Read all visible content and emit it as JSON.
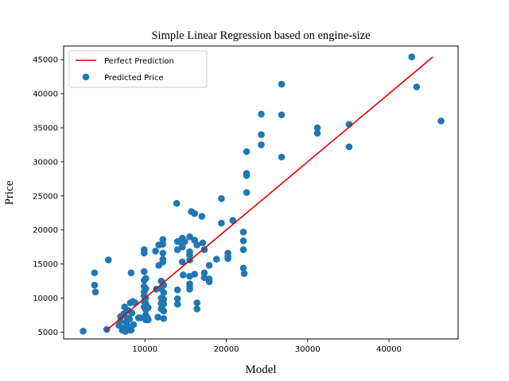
{
  "chart_data": {
    "type": "scatter",
    "title": "Simple Linear Regression based on engine-size",
    "xlabel": "Model",
    "ylabel": "Price",
    "xlim": [
      0,
      48500
    ],
    "ylim": [
      4000,
      47000
    ],
    "xticks": [
      10000,
      20000,
      30000,
      40000
    ],
    "yticks": [
      5000,
      10000,
      15000,
      20000,
      25000,
      30000,
      35000,
      40000,
      45000
    ],
    "grid": false,
    "legend_position": "top-left",
    "series": [
      {
        "name": "Perfect Prediction",
        "kind": "line",
        "color": "#e00000",
        "x": [
          5200,
          45400
        ],
        "y": [
          5200,
          45400
        ]
      },
      {
        "name": "Predicted Price",
        "kind": "scatter",
        "color": "#1f77b4",
        "points": [
          [
            2400,
            5150
          ],
          [
            3800,
            13700
          ],
          [
            3800,
            11900
          ],
          [
            3900,
            10900
          ],
          [
            5300,
            5400
          ],
          [
            5500,
            15600
          ],
          [
            6800,
            6000
          ],
          [
            7000,
            6600
          ],
          [
            7000,
            7300
          ],
          [
            7200,
            5300
          ],
          [
            7300,
            5600
          ],
          [
            7400,
            7700
          ],
          [
            7500,
            8700
          ],
          [
            7600,
            5100
          ],
          [
            7700,
            6400
          ],
          [
            7800,
            7100
          ],
          [
            7900,
            8200
          ],
          [
            8000,
            5800
          ],
          [
            8100,
            6900
          ],
          [
            8200,
            9300
          ],
          [
            8200,
            5300
          ],
          [
            8300,
            5300
          ],
          [
            8300,
            13700
          ],
          [
            8400,
            7800
          ],
          [
            8500,
            9500
          ],
          [
            8600,
            6100
          ],
          [
            8800,
            9300
          ],
          [
            9200,
            7100
          ],
          [
            9400,
            7100
          ],
          [
            9900,
            16600
          ],
          [
            9900,
            17100
          ],
          [
            9900,
            13900
          ],
          [
            9900,
            12600
          ],
          [
            9900,
            11700
          ],
          [
            9900,
            10900
          ],
          [
            9900,
            10300
          ],
          [
            9900,
            9500
          ],
          [
            9900,
            8700
          ],
          [
            9900,
            7100
          ],
          [
            10100,
            12900
          ],
          [
            10100,
            11400
          ],
          [
            10100,
            10000
          ],
          [
            10100,
            9200
          ],
          [
            10100,
            8300
          ],
          [
            10100,
            7500
          ],
          [
            10100,
            6800
          ],
          [
            10300,
            7100
          ],
          [
            10400,
            8600
          ],
          [
            10400,
            6800
          ],
          [
            11300,
            16900
          ],
          [
            11400,
            11300
          ],
          [
            11600,
            7200
          ],
          [
            11700,
            17800
          ],
          [
            11700,
            14800
          ],
          [
            12000,
            12500
          ],
          [
            12000,
            11400
          ],
          [
            12000,
            10000
          ],
          [
            12000,
            9200
          ],
          [
            12000,
            8400
          ],
          [
            12200,
            18600
          ],
          [
            12200,
            17900
          ],
          [
            12200,
            16600
          ],
          [
            12200,
            15700
          ],
          [
            12200,
            15300
          ],
          [
            12300,
            11900
          ],
          [
            12300,
            10800
          ],
          [
            12300,
            9800
          ],
          [
            12300,
            9100
          ],
          [
            12300,
            8100
          ],
          [
            12300,
            7000
          ],
          [
            13900,
            23900
          ],
          [
            14000,
            18300
          ],
          [
            14000,
            17100
          ],
          [
            14000,
            11200
          ],
          [
            14000,
            9900
          ],
          [
            14000,
            9100
          ],
          [
            14500,
            18100
          ],
          [
            14600,
            18800
          ],
          [
            14600,
            17500
          ],
          [
            14600,
            15300
          ],
          [
            14700,
            13400
          ],
          [
            14900,
            18300
          ],
          [
            15500,
            19000
          ],
          [
            15500,
            16800
          ],
          [
            15500,
            16300
          ],
          [
            15500,
            15600
          ],
          [
            15500,
            13200
          ],
          [
            15500,
            12100
          ],
          [
            15500,
            11700
          ],
          [
            15500,
            11300
          ],
          [
            15700,
            22700
          ],
          [
            16100,
            22400
          ],
          [
            16100,
            18500
          ],
          [
            16100,
            13500
          ],
          [
            16400,
            17800
          ],
          [
            16400,
            9300
          ],
          [
            16400,
            8400
          ],
          [
            17000,
            22000
          ],
          [
            17100,
            18100
          ],
          [
            17300,
            13700
          ],
          [
            17300,
            13000
          ],
          [
            17300,
            17100
          ],
          [
            17900,
            12400
          ],
          [
            17900,
            12800
          ],
          [
            17900,
            14800
          ],
          [
            18800,
            15700
          ],
          [
            19400,
            24600
          ],
          [
            19400,
            21000
          ],
          [
            20200,
            16600
          ],
          [
            20200,
            16100
          ],
          [
            20200,
            15800
          ],
          [
            20800,
            21400
          ],
          [
            22100,
            19700
          ],
          [
            22100,
            18400
          ],
          [
            22100,
            17100
          ],
          [
            22100,
            14400
          ],
          [
            22200,
            13600
          ],
          [
            22500,
            31500
          ],
          [
            22500,
            28300
          ],
          [
            22500,
            28000
          ],
          [
            22500,
            25500
          ],
          [
            24300,
            37000
          ],
          [
            24300,
            34000
          ],
          [
            24300,
            32500
          ],
          [
            26800,
            41400
          ],
          [
            26800,
            36900
          ],
          [
            26800,
            30700
          ],
          [
            31200,
            35000
          ],
          [
            31200,
            34200
          ],
          [
            35100,
            35500
          ],
          [
            35100,
            32200
          ],
          [
            42800,
            45400
          ],
          [
            43400,
            41000
          ],
          [
            46400,
            36000
          ]
        ]
      }
    ]
  }
}
